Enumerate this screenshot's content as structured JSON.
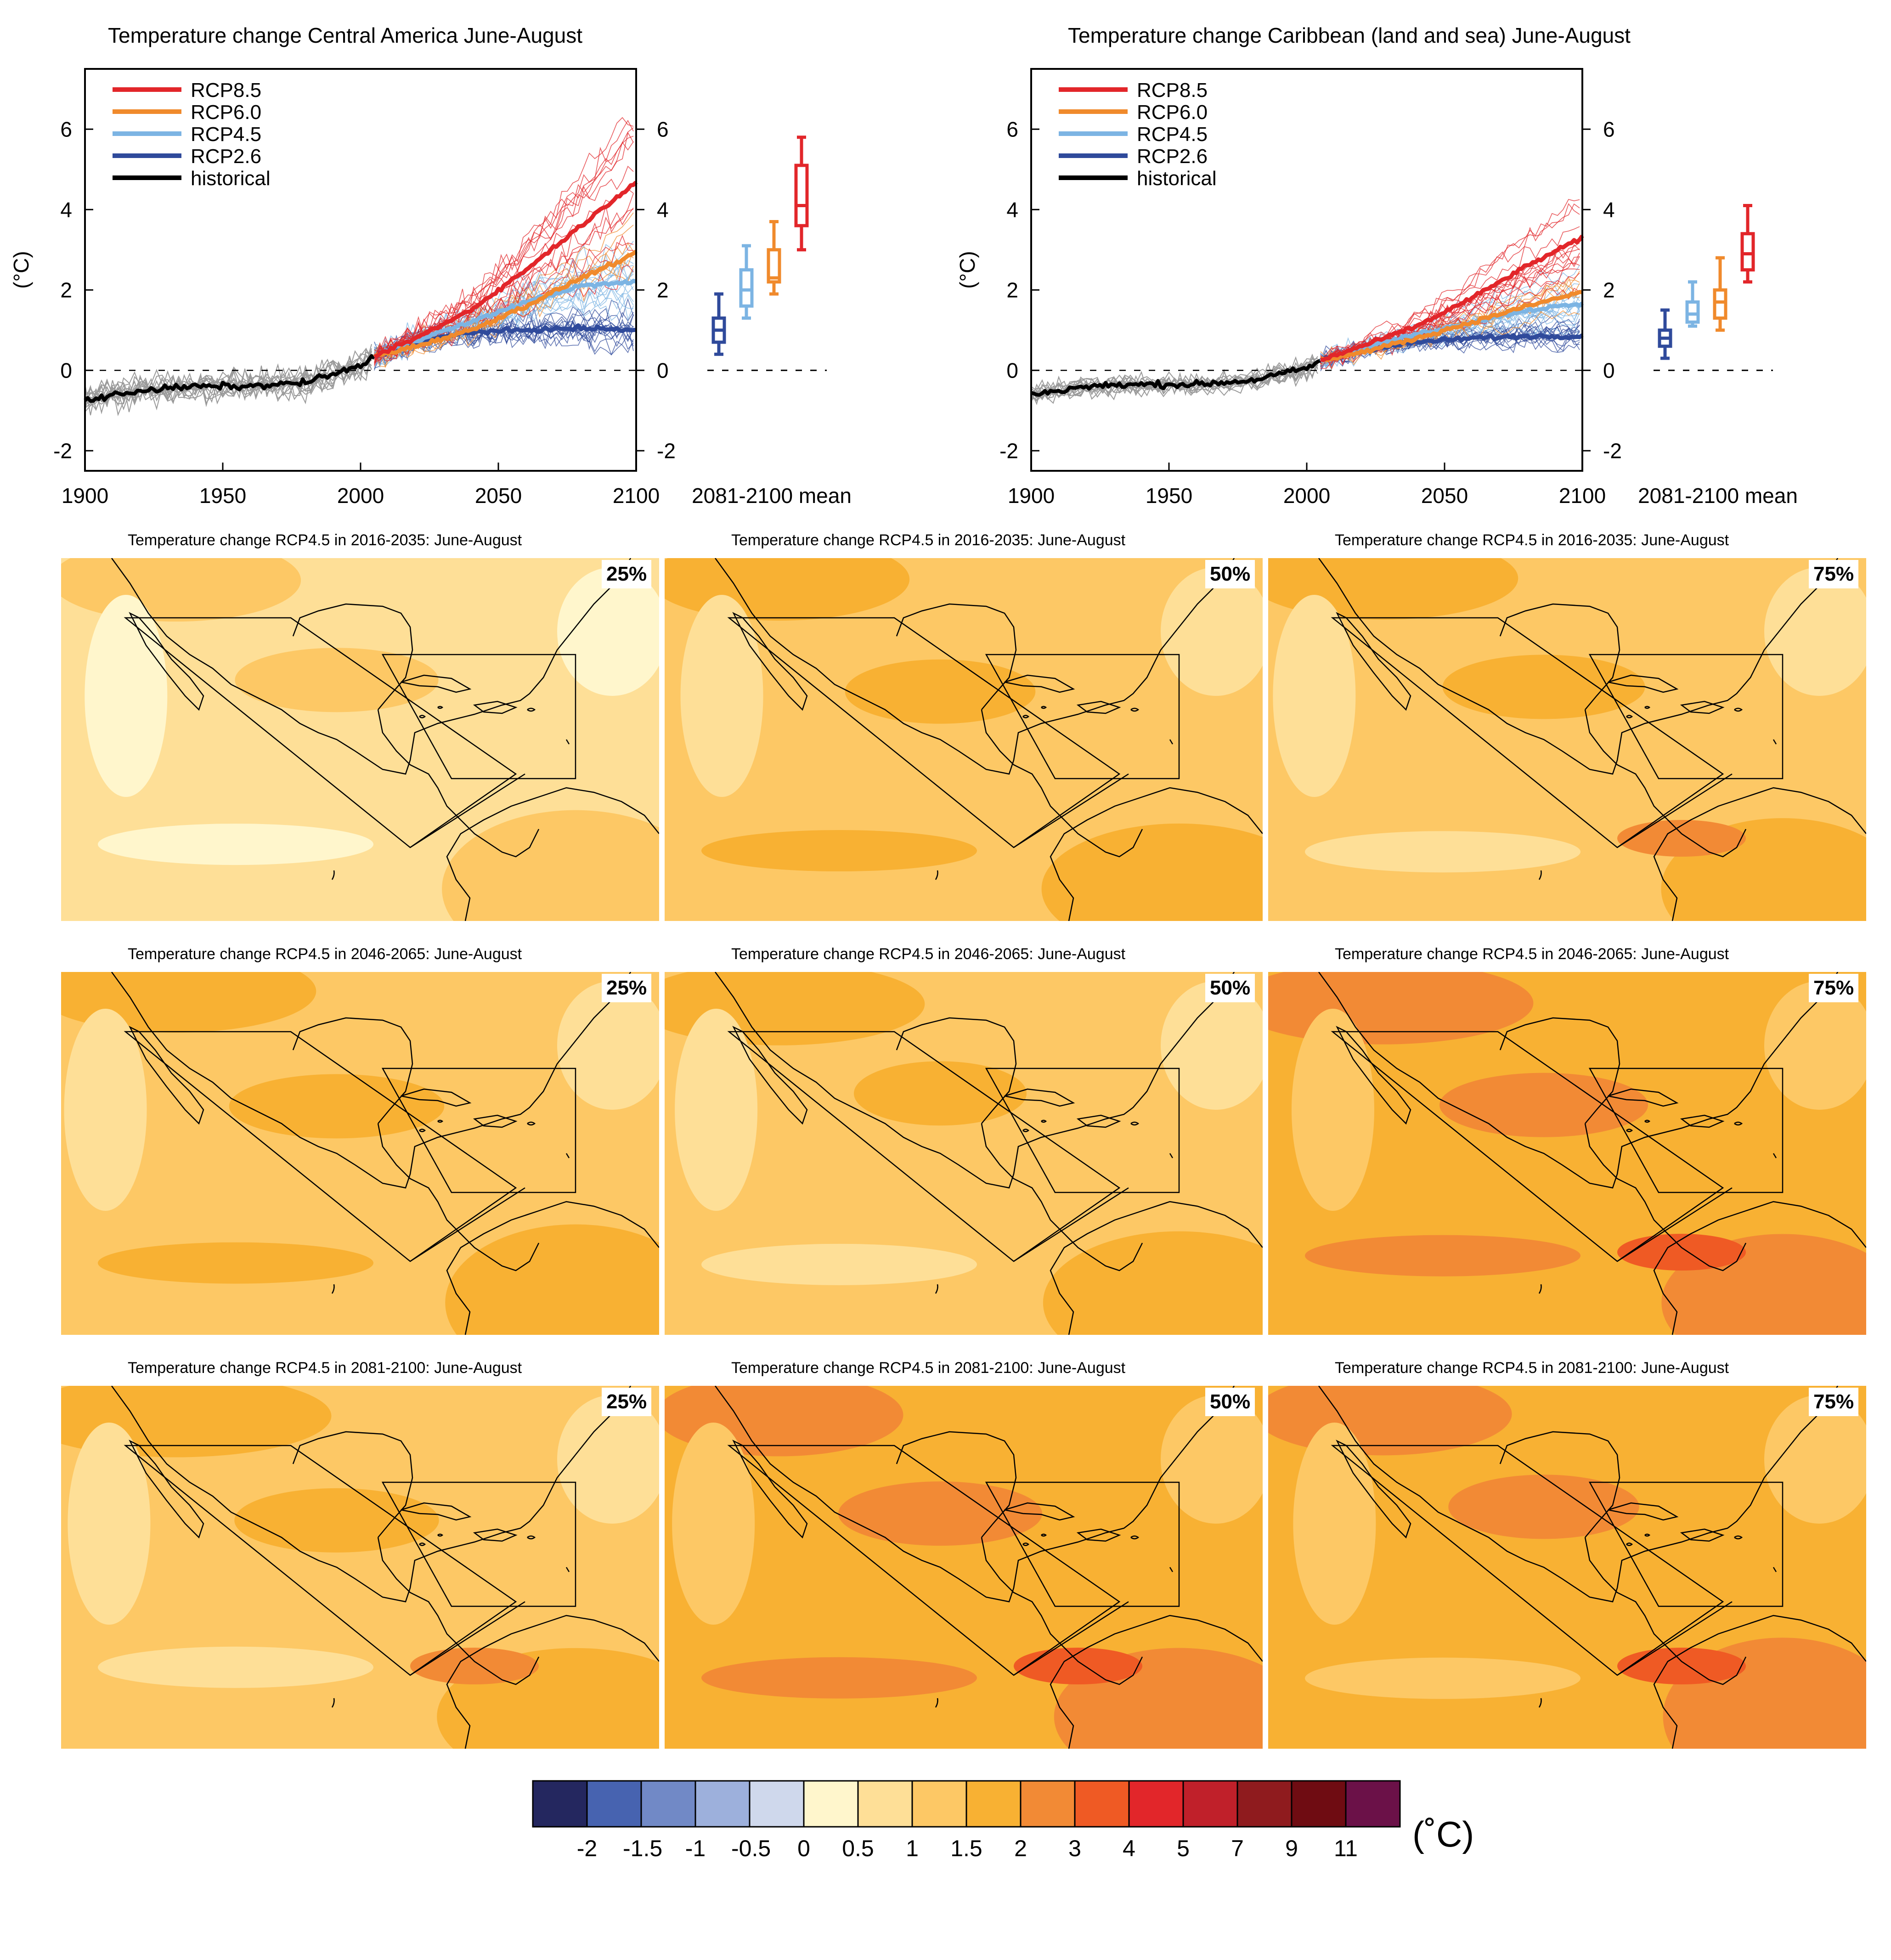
{
  "timeseries_panels": [
    {
      "title": "Temperature change Central America June-August",
      "ylabel": "(°C)",
      "right_xlabel": "2081-2100 mean"
    },
    {
      "title": "Temperature change Caribbean (land and sea) June-August",
      "ylabel": "(°C)",
      "right_xlabel": "2081-2100 mean"
    }
  ],
  "legend": [
    {
      "label": "RCP8.5",
      "color": "#e2262a"
    },
    {
      "label": "RCP6.0",
      "color": "#f08a2c"
    },
    {
      "label": "RCP4.5",
      "color": "#7cb4e3"
    },
    {
      "label": "RCP2.6",
      "color": "#2f4a9b"
    },
    {
      "label": "historical",
      "color": "#000000"
    }
  ],
  "maps": {
    "rows": [
      {
        "title": "Temperature change RCP4.5 in 2016-2035: June-August",
        "percentiles": [
          "25%",
          "50%",
          "75%"
        ]
      },
      {
        "title": "Temperature change RCP4.5 in 2046-2065: June-August",
        "percentiles": [
          "25%",
          "50%",
          "75%"
        ]
      },
      {
        "title": "Temperature change RCP4.5 in 2081-2100: June-August",
        "percentiles": [
          "25%",
          "50%",
          "75%"
        ]
      }
    ],
    "base_levels": [
      [
        1,
        1.5,
        1.5
      ],
      [
        1.5,
        1.5,
        2
      ],
      [
        1.5,
        2,
        2
      ]
    ]
  },
  "colorbar": {
    "unit": "(˚C)",
    "labels": [
      "-2",
      "-1.5",
      "-1",
      "-0.5",
      "0",
      "0.5",
      "1",
      "1.5",
      "2",
      "3",
      "4",
      "5",
      "7",
      "9",
      "11"
    ],
    "colors": [
      "#24275f",
      "#4763b0",
      "#7189c6",
      "#9db0dc",
      "#cfd8ec",
      "#fff6cc",
      "#fedf97",
      "#fdc865",
      "#f8b133",
      "#f28a35",
      "#ef5a24",
      "#e2262a",
      "#c0202a",
      "#8f1b1e",
      "#6f0c12",
      "#6b1148"
    ]
  },
  "chart_data": [
    {
      "type": "line",
      "title": "Temperature change Central America June-August",
      "xlabel": "",
      "ylabel": "(°C)",
      "xlim": [
        1900,
        2100
      ],
      "ylim": [
        -2.5,
        7.5
      ],
      "x_ticks": [
        1900,
        1950,
        2000,
        2050,
        2100
      ],
      "y_ticks": [
        -2,
        0,
        2,
        4,
        6
      ],
      "series": [
        {
          "name": "historical",
          "x": [
            1900,
            1920,
            1940,
            1960,
            1980,
            2000,
            2005
          ],
          "values": [
            -0.75,
            -0.5,
            -0.4,
            -0.4,
            -0.3,
            0.1,
            0.35
          ]
        },
        {
          "name": "RCP2.6",
          "x": [
            2005,
            2020,
            2040,
            2060,
            2080,
            2100
          ],
          "values": [
            0.35,
            0.7,
            0.95,
            1.0,
            1.05,
            1.0
          ]
        },
        {
          "name": "RCP4.5",
          "x": [
            2005,
            2020,
            2040,
            2060,
            2080,
            2100
          ],
          "values": [
            0.35,
            0.75,
            1.2,
            1.7,
            2.1,
            2.2
          ]
        },
        {
          "name": "RCP6.0",
          "x": [
            2005,
            2020,
            2040,
            2060,
            2080,
            2100
          ],
          "values": [
            0.35,
            0.6,
            1.0,
            1.6,
            2.3,
            2.9
          ]
        },
        {
          "name": "RCP8.5",
          "x": [
            2005,
            2020,
            2040,
            2060,
            2080,
            2100
          ],
          "values": [
            0.35,
            0.8,
            1.5,
            2.5,
            3.6,
            4.7
          ]
        }
      ],
      "boxes_2081_2100_mean": [
        {
          "name": "RCP2.6",
          "min": 0.4,
          "q1": 0.7,
          "median": 1.0,
          "q3": 1.3,
          "max": 1.9
        },
        {
          "name": "RCP4.5",
          "min": 1.3,
          "q1": 1.6,
          "median": 2.0,
          "q3": 2.5,
          "max": 3.1
        },
        {
          "name": "RCP6.0",
          "min": 1.9,
          "q1": 2.2,
          "median": 2.3,
          "q3": 3.0,
          "max": 3.7
        },
        {
          "name": "RCP8.5",
          "min": 3.0,
          "q1": 3.6,
          "median": 4.1,
          "q3": 5.1,
          "max": 5.8
        }
      ],
      "zero_line": 0
    },
    {
      "type": "line",
      "title": "Temperature change Caribbean (land and sea) June-August",
      "xlabel": "",
      "ylabel": "(°C)",
      "xlim": [
        1900,
        2100
      ],
      "ylim": [
        -2.5,
        7.5
      ],
      "x_ticks": [
        1900,
        1950,
        2000,
        2050,
        2100
      ],
      "y_ticks": [
        -2,
        0,
        2,
        4,
        6
      ],
      "series": [
        {
          "name": "historical",
          "x": [
            1900,
            1920,
            1940,
            1960,
            1980,
            2000,
            2005
          ],
          "values": [
            -0.6,
            -0.4,
            -0.35,
            -0.35,
            -0.25,
            0.05,
            0.25
          ]
        },
        {
          "name": "RCP2.6",
          "x": [
            2005,
            2020,
            2040,
            2060,
            2080,
            2100
          ],
          "values": [
            0.25,
            0.5,
            0.7,
            0.8,
            0.85,
            0.85
          ]
        },
        {
          "name": "RCP4.5",
          "x": [
            2005,
            2020,
            2040,
            2060,
            2080,
            2100
          ],
          "values": [
            0.25,
            0.55,
            0.9,
            1.2,
            1.5,
            1.65
          ]
        },
        {
          "name": "RCP6.0",
          "x": [
            2005,
            2020,
            2040,
            2060,
            2080,
            2100
          ],
          "values": [
            0.25,
            0.45,
            0.8,
            1.2,
            1.6,
            1.95
          ]
        },
        {
          "name": "RCP8.5",
          "x": [
            2005,
            2020,
            2040,
            2060,
            2080,
            2100
          ],
          "values": [
            0.25,
            0.6,
            1.1,
            1.8,
            2.6,
            3.3
          ]
        }
      ],
      "boxes_2081_2100_mean": [
        {
          "name": "RCP2.6",
          "min": 0.3,
          "q1": 0.6,
          "median": 0.8,
          "q3": 1.0,
          "max": 1.5
        },
        {
          "name": "RCP4.5",
          "min": 1.1,
          "q1": 1.2,
          "median": 1.4,
          "q3": 1.7,
          "max": 2.2
        },
        {
          "name": "RCP6.0",
          "min": 1.0,
          "q1": 1.3,
          "median": 1.7,
          "q3": 2.0,
          "max": 2.8
        },
        {
          "name": "RCP8.5",
          "min": 2.2,
          "q1": 2.5,
          "median": 2.9,
          "q3": 3.4,
          "max": 4.1
        }
      ],
      "zero_line": 0
    }
  ]
}
